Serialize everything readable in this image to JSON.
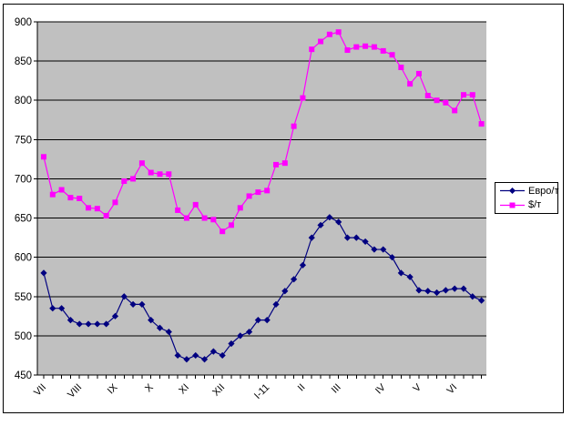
{
  "chart_data": {
    "type": "line",
    "title": "",
    "n_points": 50,
    "y_axis": {
      "min": 450,
      "max": 900,
      "step": 50,
      "tick_labels": [
        "450",
        "500",
        "550",
        "600",
        "650",
        "700",
        "750",
        "800",
        "850",
        "900"
      ]
    },
    "x_axis": {
      "tick_labels": [
        "VII",
        "VIII",
        "IX",
        "X",
        "XI",
        "XII",
        "I-11",
        "II",
        "III",
        "IV",
        "V",
        "VI"
      ],
      "tick_label_slots": [
        0,
        4,
        8,
        12,
        16,
        20,
        25,
        29,
        33,
        38,
        42,
        46
      ]
    },
    "grid": true,
    "plot_bg_color": "#C0C0C0",
    "gridline_color": "#000000",
    "legend_position": "middle-right",
    "series": [
      {
        "name": "Евро/т",
        "color": "#000080",
        "marker": "diamond",
        "values": [
          580,
          535,
          535,
          520,
          515,
          515,
          515,
          515,
          525,
          550,
          540,
          540,
          520,
          510,
          505,
          475,
          470,
          475,
          470,
          480,
          475,
          490,
          500,
          505,
          520,
          520,
          540,
          557,
          572,
          590,
          625,
          641,
          651,
          645,
          625,
          625,
          620,
          610,
          610,
          600,
          580,
          575,
          558,
          557,
          555,
          558,
          560,
          560,
          550,
          545
        ]
      },
      {
        "name": "$/т",
        "color": "#FF00FF",
        "marker": "square",
        "values": [
          728,
          680,
          686,
          676,
          675,
          663,
          662,
          653,
          670,
          697,
          700,
          720,
          708,
          706,
          706,
          660,
          650,
          667,
          650,
          648,
          633,
          641,
          663,
          678,
          683,
          685,
          718,
          720,
          767,
          803,
          865,
          875,
          884,
          887,
          864,
          868,
          869,
          868,
          863,
          858,
          842,
          821,
          834,
          806,
          800,
          797,
          787,
          807,
          807,
          770
        ]
      }
    ]
  }
}
